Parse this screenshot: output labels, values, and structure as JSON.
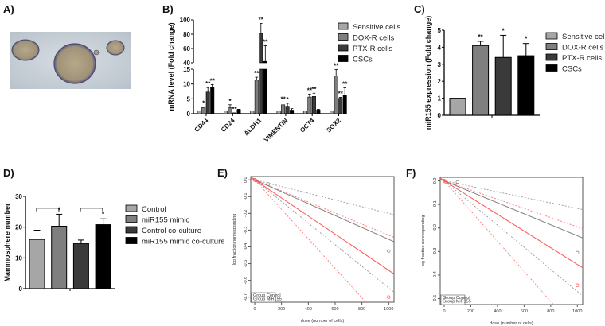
{
  "panels": {
    "a": "A)",
    "b": "B)",
    "c": "C)",
    "d": "D)",
    "e": "E)",
    "f": "F)"
  },
  "colors": {
    "sensitive": "#a6a6a6",
    "dox": "#7f7f7f",
    "ptx": "#3a3a3a",
    "cscs": "#000000",
    "control_line": "#808080",
    "mir155_line": "#ff5555"
  },
  "chart_data": [
    {
      "id": "B",
      "type": "bar",
      "ylabel": "mRNA level (Fold change)",
      "categories": [
        "CD44",
        "CD24",
        "ALDH1",
        "VIMENTIN",
        "OCT4",
        "SOX2"
      ],
      "broken_axis": {
        "lower": [
          0,
          15
        ],
        "lower_ticks": [
          0,
          5,
          10,
          15
        ],
        "upper": [
          40,
          100
        ],
        "upper_ticks": [
          40,
          60,
          80,
          100
        ]
      },
      "series": [
        {
          "name": "Sensitive cells",
          "values": [
            1,
            1,
            1,
            1,
            1,
            1
          ],
          "errors": [
            0,
            0,
            0,
            0,
            0,
            0
          ],
          "sig": [
            "",
            "",
            "",
            "",
            "",
            ""
          ]
        },
        {
          "name": "DOX-R cells",
          "values": [
            2.1,
            2.0,
            11.3,
            3.0,
            5.6,
            12.7
          ],
          "errors": [
            0.2,
            1.0,
            1.0,
            0.6,
            1.0,
            2.2
          ],
          "sig": [
            "*",
            "*",
            "**",
            "**",
            "**",
            "**"
          ]
        },
        {
          "name": "PTX-R cells",
          "values": [
            7.3,
            0.3,
            81,
            2.5,
            5.8,
            5.2
          ],
          "errors": [
            1.5,
            0,
            14,
            1.0,
            1.1,
            0.3
          ],
          "sig": [
            "**",
            "**",
            "**",
            "*",
            "**",
            "**"
          ]
        },
        {
          "name": "CSCs",
          "values": [
            8.8,
            1.4,
            42,
            1.2,
            1.3,
            6.3
          ],
          "errors": [
            1.0,
            0.1,
            22,
            0.5,
            0.2,
            2.4
          ],
          "sig": [
            "**",
            "",
            "**",
            "",
            "",
            "**"
          ]
        }
      ]
    },
    {
      "id": "C",
      "type": "bar",
      "ylabel": "miR155 expression (Fold change)",
      "ylim": [
        0,
        5
      ],
      "yticks": [
        0,
        1,
        2,
        3,
        4,
        5
      ],
      "categories": [
        "Sensitive cells",
        "DOX-R cells",
        "PTX-R cells",
        "CSCs"
      ],
      "values": [
        1,
        4.1,
        3.4,
        3.5
      ],
      "errors": [
        0,
        0.25,
        1.3,
        0.72
      ],
      "sig": [
        "",
        "**",
        "*",
        "*"
      ]
    },
    {
      "id": "D",
      "type": "bar",
      "ylabel": "Mammosphere number",
      "ylim": [
        0,
        30
      ],
      "yticks": [
        0,
        10,
        20,
        30
      ],
      "categories": [
        "Control",
        "miR155 mimic",
        "Control co-culture",
        "miR155 mimic co-culture"
      ],
      "values": [
        16,
        20.3,
        14.7,
        20.8
      ],
      "errors": [
        3.0,
        3.9,
        1.1,
        1.9
      ],
      "sig": [
        "",
        "*",
        "",
        "*"
      ]
    },
    {
      "id": "E",
      "type": "line",
      "xlabel": "dose (number of cells)",
      "ylabel": "log fraction nonresponding",
      "xlim": [
        -30,
        1040
      ],
      "ylim": [
        -0.73,
        0.02
      ],
      "xticks": [
        0,
        200,
        400,
        600,
        800,
        1000
      ],
      "yticks": [
        0.0,
        -0.1,
        -0.2,
        -0.3,
        -0.4,
        -0.5,
        -0.6,
        -0.7
      ],
      "legend": [
        "Group Control",
        "Group MiR155"
      ],
      "series": [
        {
          "name": "Group Control",
          "slope": -0.000355,
          "ci_slopes": [
            -0.0002,
            -0.000645
          ],
          "points": [
            [
              0,
              0
            ],
            [
              100,
              -0.025
            ],
            [
              1000,
              -0.425
            ]
          ]
        },
        {
          "name": "Group MiR155",
          "slope": -0.00054,
          "ci_slopes": [
            -0.00033,
            -0.00088
          ],
          "points": [
            [
              0,
              0
            ],
            [
              10,
              -0.005
            ],
            [
              1000,
              -0.7
            ]
          ]
        }
      ]
    },
    {
      "id": "F",
      "type": "line",
      "xlabel": "dose (number of cells)",
      "ylabel": "log fraction nonresponding",
      "xlim": [
        -30,
        1040
      ],
      "ylim": [
        -0.525,
        0.015
      ],
      "xticks": [
        0,
        200,
        400,
        600,
        800,
        1000
      ],
      "yticks": [
        0.0,
        -0.1,
        -0.2,
        -0.3,
        -0.4,
        -0.5
      ],
      "legend": [
        "Group Control",
        "Group MiR155"
      ],
      "series": [
        {
          "name": "Group Control",
          "slope": -0.000233,
          "ci_slopes": [
            -0.000117,
            -0.00047
          ],
          "points": [
            [
              0,
              0
            ],
            [
              100,
              -0.005
            ],
            [
              1000,
              -0.305
            ]
          ]
        },
        {
          "name": "Group MiR155",
          "slope": -0.000355,
          "ci_slopes": [
            -0.000195,
            -0.00064
          ],
          "points": [
            [
              0,
              0
            ],
            [
              10,
              -0.004
            ],
            [
              1000,
              -0.443
            ]
          ]
        }
      ]
    }
  ]
}
